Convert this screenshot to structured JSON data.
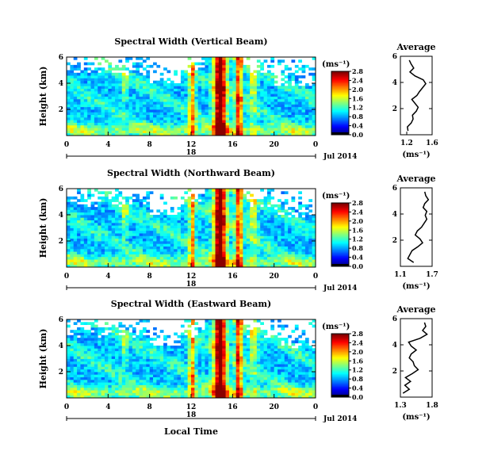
{
  "figure": {
    "time_axis_label": "Local Time"
  },
  "chart_data": [
    {
      "type": "heatmap",
      "title": "Spectral Width (Vertical Beam)",
      "ylabel": "Height (km)",
      "x_ticks": [
        "0",
        "4",
        "8",
        "12",
        "16",
        "20",
        "0"
      ],
      "y_ticks": [
        "2",
        "4",
        "6"
      ],
      "xlim": [
        0,
        24
      ],
      "ylim": [
        0,
        6
      ],
      "day_marker": "18",
      "date_label": "Jul 2014",
      "colorbar": {
        "unit": "(ms⁻¹)",
        "ticks": [
          "0.0",
          "0.4",
          "0.8",
          "1.2",
          "1.6",
          "2.0",
          "2.4",
          "2.8"
        ]
      },
      "profile": {
        "title": "Average",
        "xlabel": "(ms⁻¹)",
        "x_ticks": [
          "1.2",
          "1.6"
        ],
        "xlim": [
          1.1,
          1.6
        ],
        "y_ticks": [
          "2",
          "4",
          "6"
        ],
        "ylim": [
          0,
          6
        ],
        "heights": [
          0.3,
          0.6,
          0.9,
          1.2,
          1.5,
          1.8,
          2.1,
          2.4,
          2.7,
          3.0,
          3.3,
          3.6,
          3.9,
          4.2,
          4.5,
          4.8,
          5.1,
          5.4,
          5.7
        ],
        "values": [
          1.22,
          1.21,
          1.27,
          1.3,
          1.29,
          1.35,
          1.38,
          1.33,
          1.28,
          1.36,
          1.4,
          1.45,
          1.5,
          1.46,
          1.33,
          1.25,
          1.31,
          1.27,
          1.24
        ]
      }
    },
    {
      "type": "heatmap",
      "title": "Spectral Width (Northward Beam)",
      "ylabel": "Height (km)",
      "x_ticks": [
        "0",
        "4",
        "8",
        "12",
        "16",
        "20",
        "0"
      ],
      "y_ticks": [
        "2",
        "4",
        "6"
      ],
      "xlim": [
        0,
        24
      ],
      "ylim": [
        0,
        6
      ],
      "day_marker": "18",
      "date_label": "Jul 2014",
      "colorbar": {
        "unit": "(ms⁻¹)",
        "ticks": [
          "0.0",
          "0.4",
          "0.8",
          "1.2",
          "1.6",
          "2.0",
          "2.4",
          "2.8"
        ]
      },
      "profile": {
        "title": "Average",
        "xlabel": "(ms⁻¹)",
        "x_ticks": [
          "1.1",
          "1.7"
        ],
        "xlim": [
          1.1,
          1.7
        ],
        "y_ticks": [
          "2",
          "4",
          "6"
        ],
        "ylim": [
          0,
          6
        ],
        "heights": [
          0.3,
          0.6,
          0.9,
          1.2,
          1.5,
          1.8,
          2.1,
          2.4,
          2.7,
          3.0,
          3.3,
          3.6,
          3.9,
          4.2,
          4.5,
          4.8,
          5.1,
          5.4,
          5.7
        ],
        "values": [
          1.35,
          1.24,
          1.28,
          1.32,
          1.43,
          1.52,
          1.47,
          1.38,
          1.42,
          1.5,
          1.55,
          1.6,
          1.57,
          1.6,
          1.53,
          1.56,
          1.63,
          1.58,
          1.56
        ]
      }
    },
    {
      "type": "heatmap",
      "title": "Spectral Width (Eastward Beam)",
      "ylabel": "Height (km)",
      "x_ticks": [
        "0",
        "4",
        "8",
        "12",
        "16",
        "20",
        "0"
      ],
      "y_ticks": [
        "2",
        "4",
        "6"
      ],
      "xlim": [
        0,
        24
      ],
      "ylim": [
        0,
        6
      ],
      "day_marker": "18",
      "date_label": "Jul 2014",
      "colorbar": {
        "unit": "(ms⁻¹)",
        "ticks": [
          "0.0",
          "0.4",
          "0.8",
          "1.2",
          "1.6",
          "2.0",
          "2.4",
          "2.8"
        ]
      },
      "profile": {
        "title": "Average",
        "xlabel": "(ms⁻¹)",
        "x_ticks": [
          "1.3",
          "1.8"
        ],
        "xlim": [
          1.3,
          1.8
        ],
        "y_ticks": [
          "2",
          "4",
          "6"
        ],
        "ylim": [
          0,
          6
        ],
        "heights": [
          0.3,
          0.6,
          0.9,
          1.2,
          1.5,
          1.8,
          2.1,
          2.4,
          2.7,
          3.0,
          3.3,
          3.6,
          3.9,
          4.2,
          4.5,
          4.8,
          5.1,
          5.4,
          5.7
        ],
        "values": [
          1.34,
          1.44,
          1.37,
          1.46,
          1.38,
          1.49,
          1.58,
          1.52,
          1.5,
          1.44,
          1.47,
          1.55,
          1.47,
          1.43,
          1.61,
          1.72,
          1.65,
          1.7,
          1.68
        ]
      }
    }
  ]
}
